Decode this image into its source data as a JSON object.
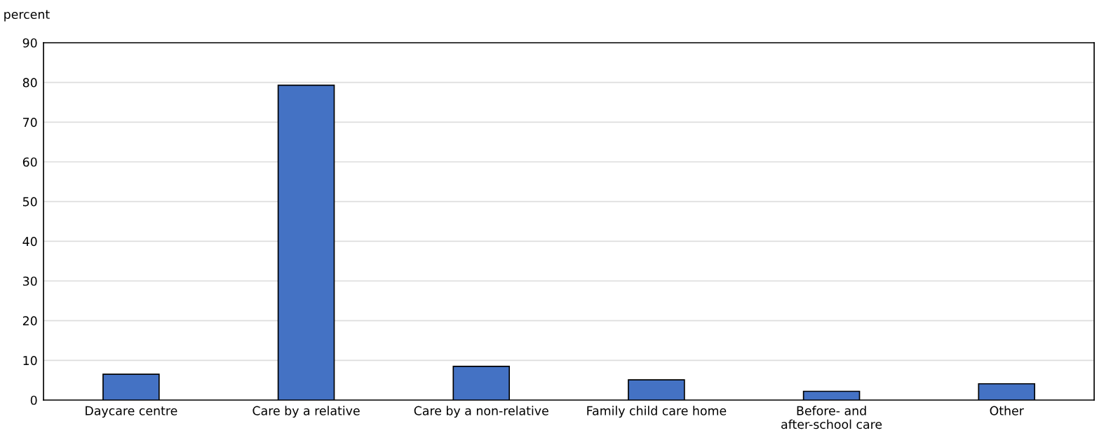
{
  "chart_data": {
    "type": "bar",
    "ylabel": "percent",
    "categories": [
      "Daycare centre",
      "Care by a relative",
      "Care by a non-relative",
      "Family child care home",
      "Before- and after-school care",
      "Other"
    ],
    "values": [
      6.5,
      79.3,
      8.5,
      5.1,
      2.2,
      4.1
    ],
    "color": "#4472c4",
    "ylim": [
      0,
      90
    ],
    "yticks": [
      0,
      10,
      20,
      30,
      40,
      50,
      60,
      70,
      80,
      90
    ],
    "grid": "y"
  }
}
